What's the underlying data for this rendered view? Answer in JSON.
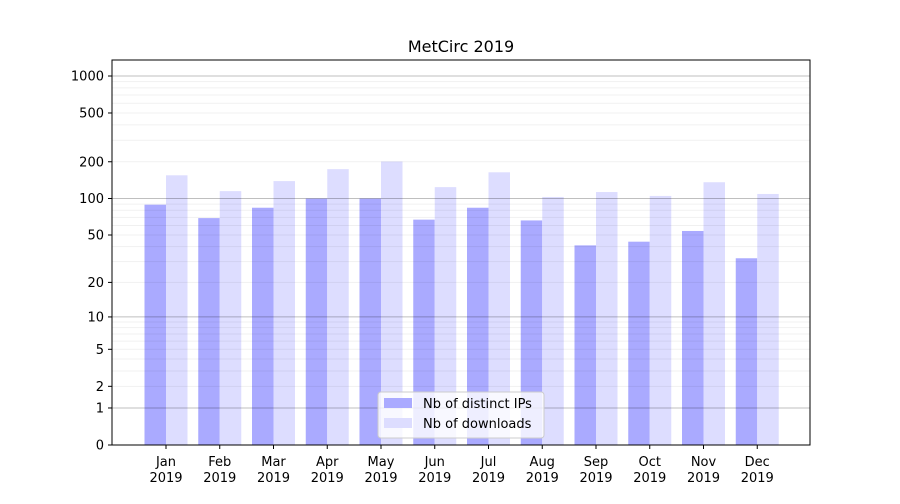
{
  "chart_data": {
    "type": "bar",
    "title": "MetCirc 2019",
    "xlabel": "",
    "ylabel": "",
    "yscale": "log(1+y)",
    "ylim": [
      0,
      1350
    ],
    "yticks": [
      0,
      1,
      2,
      5,
      10,
      20,
      50,
      100,
      200,
      500,
      1000
    ],
    "categories": [
      "Jan\n2019",
      "Feb\n2019",
      "Mar\n2019",
      "Apr\n2019",
      "May\n2019",
      "Jun\n2019",
      "Jul\n2019",
      "Aug\n2019",
      "Sep\n2019",
      "Oct\n2019",
      "Nov\n2019",
      "Dec\n2019"
    ],
    "series": [
      {
        "name": "Nb of distinct IPs",
        "color": "#aaaaff",
        "values": [
          89,
          69,
          84,
          100,
          100,
          67,
          84,
          66,
          41,
          44,
          54,
          32
        ]
      },
      {
        "name": "Nb of downloads",
        "color": "#ddddff",
        "values": [
          155,
          115,
          139,
          174,
          201,
          124,
          164,
          103,
          113,
          105,
          136,
          109
        ]
      }
    ],
    "grid": true,
    "legend": "bottom-center"
  }
}
